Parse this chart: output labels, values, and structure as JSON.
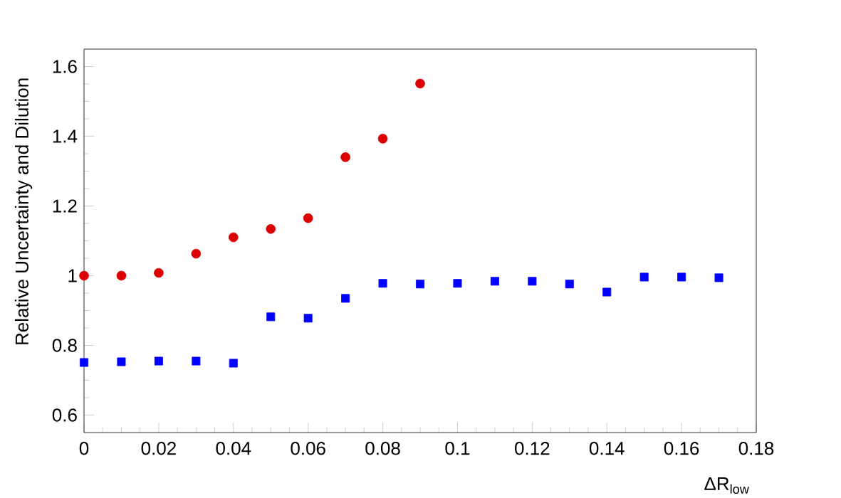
{
  "chart_data": {
    "type": "scatter",
    "xlabel": "ΔR$_{low}$",
    "ylabel": "Relative Uncertainty and Dilution",
    "xlim": [
      0,
      0.18
    ],
    "ylim": [
      0.55,
      1.65
    ],
    "xticks": [
      0,
      0.02,
      0.04,
      0.06,
      0.08,
      0.1,
      0.12,
      0.14,
      0.16,
      0.18
    ],
    "yticks": [
      0.6,
      0.8,
      1,
      1.2,
      1.4,
      1.6
    ],
    "grid": false,
    "series": [
      {
        "color": "#dd0000",
        "marker": "circle",
        "x": [
          0,
          0.01,
          0.02,
          0.03,
          0.04,
          0.05,
          0.06,
          0.07,
          0.08,
          0.09
        ],
        "values": [
          1.0,
          1.0,
          1.008,
          1.063,
          1.11,
          1.134,
          1.165,
          1.34,
          1.393,
          1.551
        ]
      },
      {
        "color": "#0000ff",
        "marker": "square",
        "x": [
          0,
          0.01,
          0.02,
          0.03,
          0.04,
          0.05,
          0.06,
          0.07,
          0.08,
          0.09,
          0.1,
          0.11,
          0.12,
          0.13,
          0.14,
          0.15,
          0.16,
          0.17
        ],
        "values": [
          0.751,
          0.753,
          0.755,
          0.755,
          0.749,
          0.882,
          0.878,
          0.935,
          0.978,
          0.976,
          0.978,
          0.984,
          0.984,
          0.976,
          0.953,
          0.996,
          0.996,
          0.994
        ]
      }
    ]
  }
}
